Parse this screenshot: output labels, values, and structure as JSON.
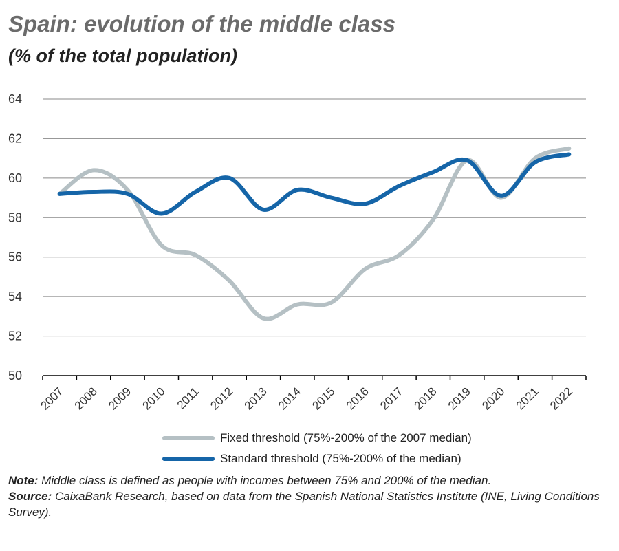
{
  "title": "Spain: evolution of the middle class",
  "subtitle": "(% of the total population)",
  "chart_data": {
    "type": "line",
    "title": "Spain: evolution of the middle class",
    "subtitle": "(% of the total population)",
    "x": [
      "2007",
      "2008",
      "2009",
      "2010",
      "2011",
      "2012",
      "2013",
      "2014",
      "2015",
      "2016",
      "2017",
      "2018",
      "2019",
      "2020",
      "2021",
      "2022"
    ],
    "ylim": [
      50,
      64
    ],
    "yticks": [
      50,
      52,
      54,
      56,
      58,
      60,
      62,
      64
    ],
    "grid": true,
    "legend_position": "bottom",
    "series": [
      {
        "name": "Fixed threshold (75%-200% of the 2007 median)",
        "color": "#b5c0c4",
        "values": [
          59.2,
          60.4,
          59.4,
          56.6,
          56.1,
          54.8,
          52.9,
          53.6,
          53.7,
          55.4,
          56.1,
          57.9,
          60.9,
          59.0,
          61.0,
          61.5
        ]
      },
      {
        "name": "Standard threshold (75%-200% of the median)",
        "color": "#1565a8",
        "values": [
          59.2,
          59.3,
          59.2,
          58.2,
          59.3,
          60.0,
          58.4,
          59.4,
          59.0,
          58.7,
          59.6,
          60.3,
          60.9,
          59.1,
          60.8,
          61.2
        ]
      }
    ]
  },
  "notes": {
    "note_label": "Note:",
    "note_text": " Middle class is defined as people with incomes between 75% and 200% of the median.",
    "source_label": "Source:",
    "source_text": " CaixaBank Research, based on data from the Spanish National Statistics Institute (INE, Living Conditions Survey)."
  }
}
